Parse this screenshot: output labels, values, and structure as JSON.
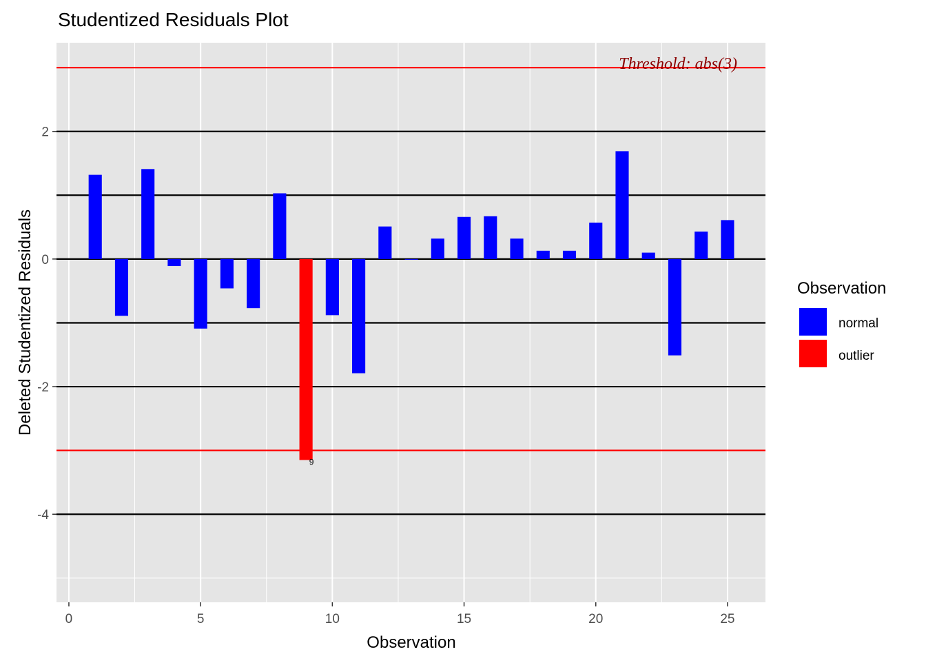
{
  "chart_data": {
    "type": "bar",
    "title": "Studentized Residuals Plot",
    "xlabel": "Observation",
    "ylabel": "Deleted Studentized Residuals",
    "x": [
      1,
      2,
      3,
      4,
      5,
      6,
      7,
      8,
      9,
      10,
      11,
      12,
      13,
      14,
      15,
      16,
      17,
      18,
      19,
      20,
      21,
      22,
      23,
      24,
      25
    ],
    "values": [
      1.32,
      -0.89,
      1.41,
      -0.11,
      -1.09,
      -0.46,
      -0.77,
      1.03,
      -3.15,
      -0.88,
      -1.79,
      0.51,
      -0.01,
      0.32,
      0.66,
      0.67,
      0.32,
      0.13,
      0.13,
      0.57,
      1.69,
      0.1,
      -1.51,
      0.43,
      0.61
    ],
    "status": [
      "normal",
      "normal",
      "normal",
      "normal",
      "normal",
      "normal",
      "normal",
      "normal",
      "outlier",
      "normal",
      "normal",
      "normal",
      "normal",
      "normal",
      "normal",
      "normal",
      "normal",
      "normal",
      "normal",
      "normal",
      "normal",
      "normal",
      "normal",
      "normal",
      "normal"
    ],
    "xlim": [
      -0.47,
      26.44
    ],
    "ylim": [
      -5.38,
      3.39
    ],
    "xticks": [
      0,
      5,
      10,
      15,
      20,
      25
    ],
    "xtick_labels": [
      "0",
      "5",
      "10",
      "15",
      "20",
      "25"
    ],
    "yticks": [
      -4,
      -2,
      0,
      2
    ],
    "ytick_labels": [
      "-4",
      "-2",
      "0",
      "2"
    ],
    "ref_lines": [
      -4,
      -2,
      -1,
      0,
      1,
      2
    ],
    "threshold_lines": [
      3,
      -3
    ],
    "threshold_label": "Threshold: abs(3)",
    "outlier_labels": [
      {
        "x": 9,
        "label": "9"
      }
    ],
    "legend": {
      "title": "Observation",
      "placement": "right",
      "entries": [
        {
          "label": "normal",
          "color": "#0000ff"
        },
        {
          "label": "outlier",
          "color": "#ff0000"
        }
      ]
    },
    "colors": {
      "normal": "#0000ff",
      "outlier": "#ff0000",
      "threshold": "#ff0000",
      "panel": "#e5e5e5"
    },
    "grid": true
  }
}
